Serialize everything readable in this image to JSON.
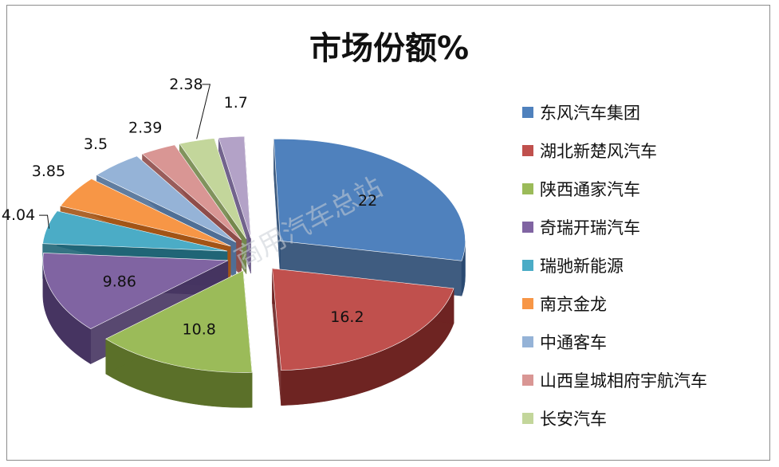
{
  "chart_data": {
    "type": "pie",
    "title": "市场份额%",
    "watermark": "商用汽车总站",
    "slices": [
      {
        "label": "东风汽车集团",
        "value": 22,
        "value_label": "22",
        "color": "#4F81BD",
        "side": "#2A4A72"
      },
      {
        "label": "湖北新楚风汽车",
        "value": 16.2,
        "value_label": "16.2",
        "color": "#C0504D",
        "side": "#6E2422"
      },
      {
        "label": "陕西通家汽车",
        "value": 10.8,
        "value_label": "10.8",
        "color": "#9BBB59",
        "side": "#5B7029"
      },
      {
        "label": "奇瑞开瑞汽车",
        "value": 9.86,
        "value_label": "9.86",
        "color": "#8064A2",
        "side": "#463461"
      },
      {
        "label": "瑞驰新能源",
        "value": 4.04,
        "value_label": "4.04",
        "color": "#4BACC6",
        "side": "#1F6577"
      },
      {
        "label": "南京金龙",
        "value": 3.85,
        "value_label": "3.85",
        "color": "#F79646",
        "side": "#A45415"
      },
      {
        "label": "中通客车",
        "value": 3.5,
        "value_label": "3.5",
        "color": "#95B3D7",
        "side": "#4F6F96"
      },
      {
        "label": "山西皇城相府宇航汽车",
        "value": 2.39,
        "value_label": "2.39",
        "color": "#D99694",
        "side": "#8E4B49"
      },
      {
        "label": "长安汽车",
        "value": 2.38,
        "value_label": "2.38",
        "color": "#C3D69B",
        "side": "#73874B"
      },
      {
        "label": "",
        "value": 1.7,
        "value_label": "1.7",
        "color": "#B3A2C7",
        "side": "#635281"
      }
    ],
    "legend_position": "right"
  }
}
